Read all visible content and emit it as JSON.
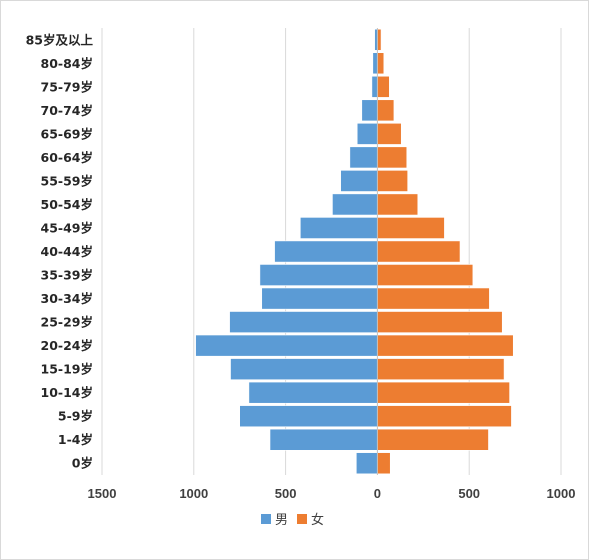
{
  "chart_data": {
    "type": "bar",
    "orientation": "horizontal",
    "title": "",
    "categories": [
      "85岁及以上",
      "80-84岁",
      "75-79岁",
      "70-74岁",
      "65-69岁",
      "60-64岁",
      "55-59岁",
      "50-54岁",
      "45-49岁",
      "40-44岁",
      "35-39岁",
      "30-34岁",
      "25-29岁",
      "20-24岁",
      "15-19岁",
      "10-14岁",
      "5-9岁",
      "1-4岁",
      "0岁"
    ],
    "series": [
      {
        "name": "男",
        "color": "#5b9bd5",
        "values": [
          -15,
          -25,
          -30,
          -85,
          -110,
          -150,
          -200,
          -245,
          -420,
          -560,
          -640,
          -630,
          -805,
          -990,
          -800,
          -700,
          -750,
          -585,
          -115
        ]
      },
      {
        "name": "女",
        "color": "#ed7d31",
        "values": [
          20,
          35,
          65,
          90,
          130,
          160,
          165,
          220,
          365,
          450,
          520,
          610,
          680,
          740,
          690,
          720,
          730,
          605,
          70
        ]
      }
    ],
    "x_ticks": [
      -1500,
      -1000,
      -500,
      0,
      500,
      1000
    ],
    "x_tick_labels": [
      "1500",
      "1000",
      "500",
      "0",
      "500",
      "1000"
    ],
    "xlim": [
      -1500,
      1000
    ],
    "grid": "vertical",
    "legend_position": "bottom"
  }
}
